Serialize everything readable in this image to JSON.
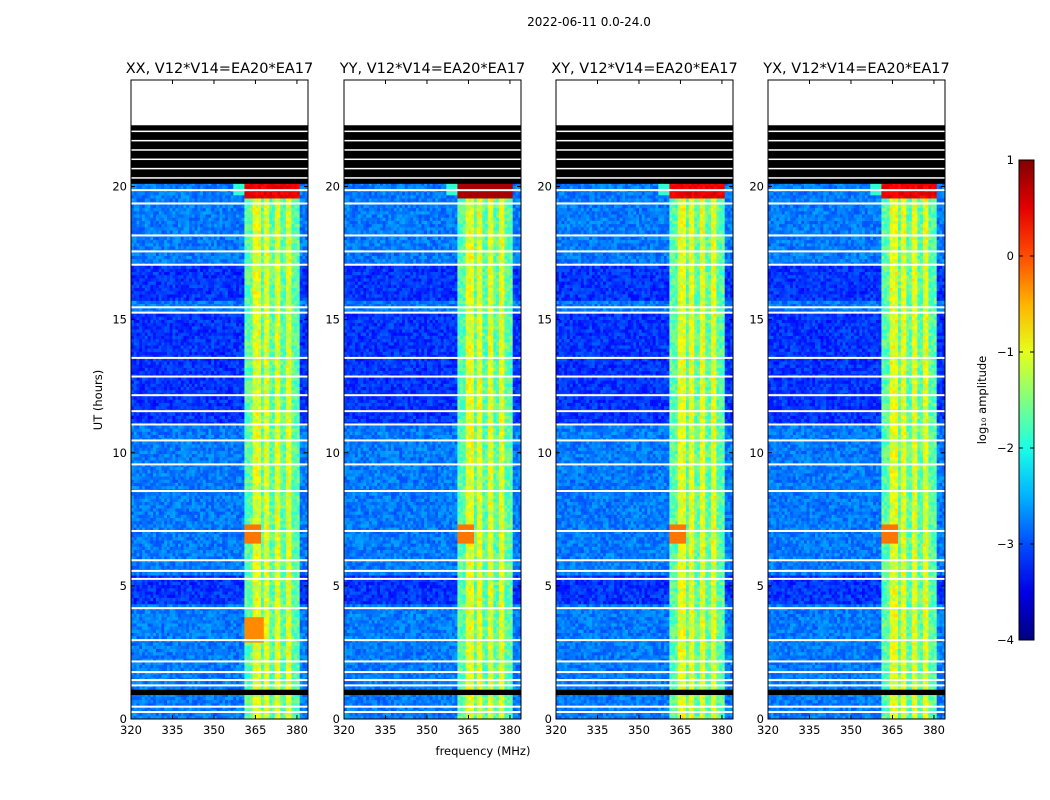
{
  "chart_data": {
    "type": "heatmap",
    "suptitle": "2022-06-11 0.0-24.0",
    "xlabel": "frequency (MHz)",
    "ylabel": "UT (hours)",
    "x_ticks": [
      320,
      335,
      350,
      365,
      380
    ],
    "y_ticks": [
      0,
      5,
      10,
      15,
      20
    ],
    "xlim": [
      320,
      384
    ],
    "ylim": [
      0,
      24
    ],
    "colorbar": {
      "label": "log₁₀ amplitude",
      "ticks": [
        1,
        0,
        -1,
        -2,
        -3,
        -4
      ],
      "range": [
        -4,
        1
      ],
      "colormap": "jet"
    },
    "panels": [
      {
        "title": "XX, V12*V14=EA20*EA17"
      },
      {
        "title": "YY, V12*V14=EA20*EA17"
      },
      {
        "title": "XY, V12*V14=EA20*EA17"
      },
      {
        "title": "YX, V12*V14=EA20*EA17"
      }
    ],
    "data_gaps_hours": [
      [
        22.3,
        24.0
      ]
    ],
    "flagged_blocks_hours": [
      [
        20.1,
        22.3
      ],
      [
        0.9,
        1.1
      ]
    ],
    "rfi_band_mhz": [
      361,
      380
    ]
  }
}
